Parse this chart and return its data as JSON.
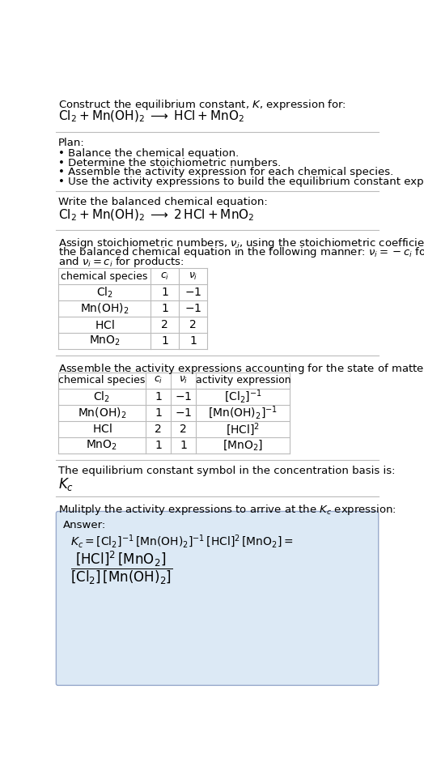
{
  "bg_color": "#ffffff",
  "text_color": "#000000",
  "title_line1": "Construct the equilibrium constant, $K$, expression for:",
  "title_line2": "$\\mathrm{Cl_2 + Mn(OH)_2 \\;\\longrightarrow\\; HCl + MnO_2}$",
  "plan_header": "Plan:",
  "plan_items": [
    "• Balance the chemical equation.",
    "• Determine the stoichiometric numbers.",
    "• Assemble the activity expression for each chemical species.",
    "• Use the activity expressions to build the equilibrium constant expression."
  ],
  "balanced_header": "Write the balanced chemical equation:",
  "balanced_eq": "$\\mathrm{Cl_2 + Mn(OH)_2 \\;\\longrightarrow\\; 2\\,HCl + MnO_2}$",
  "stoich_lines": [
    "Assign stoichiometric numbers, $\\nu_i$, using the stoichiometric coefficients, $c_i$, from",
    "the balanced chemical equation in the following manner: $\\nu_i = -c_i$ for reactants",
    "and $\\nu_i = c_i$ for products:"
  ],
  "table1_cols": [
    "chemical species",
    "$c_i$",
    "$\\nu_i$"
  ],
  "table1_rows": [
    [
      "$\\mathrm{Cl_2}$",
      "1",
      "$-1$"
    ],
    [
      "$\\mathrm{Mn(OH)_2}$",
      "1",
      "$-1$"
    ],
    [
      "$\\mathrm{HCl}$",
      "2",
      "2"
    ],
    [
      "$\\mathrm{MnO_2}$",
      "1",
      "1"
    ]
  ],
  "activity_header": "Assemble the activity expressions accounting for the state of matter and $\\nu_i$:",
  "table2_cols": [
    "chemical species",
    "$c_i$",
    "$\\nu_i$",
    "activity expression"
  ],
  "table2_rows": [
    [
      "$\\mathrm{Cl_2}$",
      "1",
      "$-1$",
      "$[\\mathrm{Cl_2}]^{-1}$"
    ],
    [
      "$\\mathrm{Mn(OH)_2}$",
      "1",
      "$-1$",
      "$[\\mathrm{Mn(OH)_2}]^{-1}$"
    ],
    [
      "$\\mathrm{HCl}$",
      "2",
      "2",
      "$[\\mathrm{HCl}]^{2}$"
    ],
    [
      "$\\mathrm{MnO_2}$",
      "1",
      "1",
      "$[\\mathrm{MnO_2}]$"
    ]
  ],
  "kc_header": "The equilibrium constant symbol in the concentration basis is:",
  "kc_symbol": "$K_c$",
  "multiply_header": "Mulitply the activity expressions to arrive at the $K_c$ expression:",
  "answer_label": "Answer:",
  "answer_box_color": "#dce9f5",
  "table_line_color": "#bbbbbb",
  "separator_color": "#bbbbbb"
}
